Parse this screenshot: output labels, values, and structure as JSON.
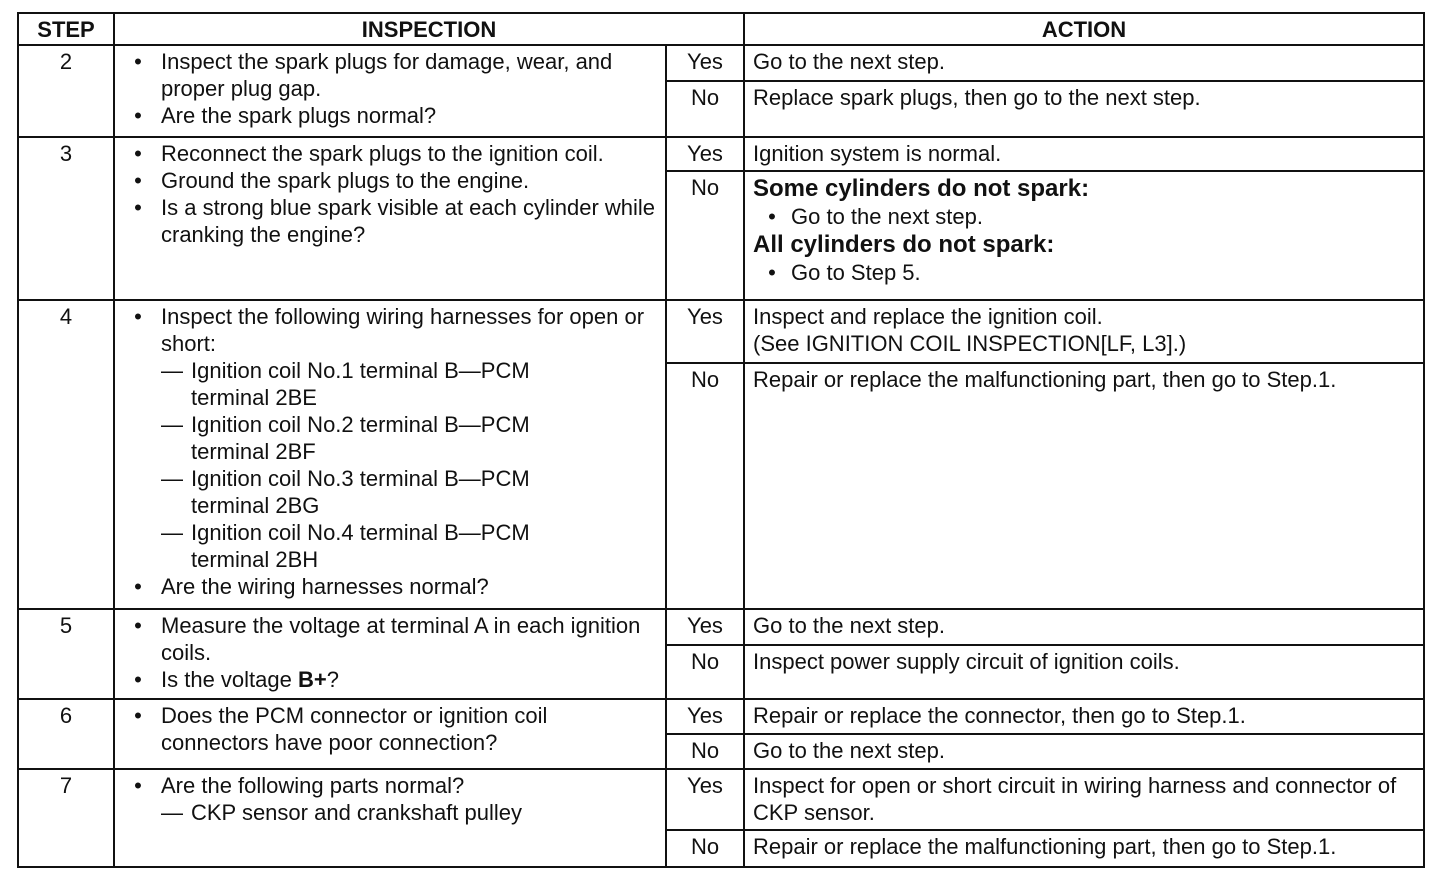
{
  "headers": {
    "step": "STEP",
    "inspection": "INSPECTION",
    "action": "ACTION"
  },
  "rows": [
    {
      "step": "2",
      "heights": [
        36,
        56
      ],
      "inspection": [
        {
          "type": "bullet",
          "text": "Inspect the spark plugs for damage, wear, and proper plug gap."
        },
        {
          "type": "bullet",
          "text": "Are the spark plugs normal?"
        }
      ],
      "yes_label": "Yes",
      "yes": [
        {
          "type": "text",
          "text": "Go to the next step."
        }
      ],
      "no_label": "No",
      "no": [
        {
          "type": "text",
          "text": "Replace spark plugs, then go to the next step."
        }
      ]
    },
    {
      "step": "3",
      "heights": [
        34,
        129
      ],
      "inspection": [
        {
          "type": "bullet",
          "text": "Reconnect the spark plugs to the ignition coil."
        },
        {
          "type": "bullet",
          "text": "Ground the spark plugs to the engine."
        },
        {
          "type": "bullet",
          "text": "Is a strong blue spark visible at each cylinder while cranking the engine?"
        }
      ],
      "yes_label": "Yes",
      "yes": [
        {
          "type": "text",
          "text": "Ignition system is normal."
        }
      ],
      "no_label": "No",
      "no": [
        {
          "type": "heading",
          "text": "Some cylinders do not spark:"
        },
        {
          "type": "bullet",
          "text": "Go to the next step."
        },
        {
          "type": "heading",
          "text": "All cylinders do not spark:"
        },
        {
          "type": "bullet",
          "text": "Go to Step 5."
        }
      ]
    },
    {
      "step": "4",
      "heights": [
        63,
        246
      ],
      "inspection": [
        {
          "type": "bullet",
          "text": "Inspect the following wiring harnesses for open or short:"
        },
        {
          "type": "dash",
          "text": "Ignition coil No.1 terminal B—PCM terminal 2BE"
        },
        {
          "type": "dash",
          "text": "Ignition coil No.2 terminal B—PCM terminal 2BF"
        },
        {
          "type": "dash",
          "text": "Ignition coil No.3 terminal B—PCM terminal 2BG"
        },
        {
          "type": "dash",
          "text": "Ignition coil No.4 terminal B—PCM terminal 2BH"
        },
        {
          "type": "bullet",
          "text": "Are the wiring harnesses normal?"
        }
      ],
      "yes_label": "Yes",
      "yes": [
        {
          "type": "text",
          "text": "Inspect and replace the ignition coil."
        },
        {
          "type": "text",
          "text": "(See IGNITION COIL INSPECTION[LF, L3].)"
        }
      ],
      "no_label": "No",
      "no": [
        {
          "type": "text",
          "text": "Repair or replace the malfunctioning part, then go to Step.1."
        }
      ]
    },
    {
      "step": "5",
      "heights": [
        36,
        54
      ],
      "inspection": [
        {
          "type": "bullet",
          "text": "Measure the voltage at terminal A in each ignition coils."
        },
        {
          "type": "bullet",
          "text": "Is the voltage ",
          "bold": "B+",
          "after": "?"
        }
      ],
      "yes_label": "Yes",
      "yes": [
        {
          "type": "text",
          "text": "Go to the next step."
        }
      ],
      "no_label": "No",
      "no": [
        {
          "type": "text",
          "text": "Inspect power supply circuit of ignition coils."
        }
      ]
    },
    {
      "step": "6",
      "heights": [
        35,
        35
      ],
      "inspection": [
        {
          "type": "bullet",
          "text": "Does the PCM connector or ignition coil connectors have poor connection?"
        }
      ],
      "yes_label": "Yes",
      "yes": [
        {
          "type": "text",
          "text": "Repair or replace the connector, then go to Step.1."
        }
      ],
      "no_label": "No",
      "no": [
        {
          "type": "text",
          "text": "Go to the next step."
        }
      ]
    },
    {
      "step": "7",
      "heights": [
        61,
        37
      ],
      "inspection": [
        {
          "type": "bullet",
          "text": "Are the following parts normal?"
        },
        {
          "type": "dash",
          "text": "CKP sensor and crankshaft pulley"
        }
      ],
      "yes_label": "Yes",
      "yes": [
        {
          "type": "text",
          "text": "Inspect for open or short circuit in wiring harness and connector of CKP sensor."
        }
      ],
      "no_label": "No",
      "no": [
        {
          "type": "text",
          "text": "Repair or replace the malfunctioning part, then go to Step.1."
        }
      ]
    }
  ]
}
